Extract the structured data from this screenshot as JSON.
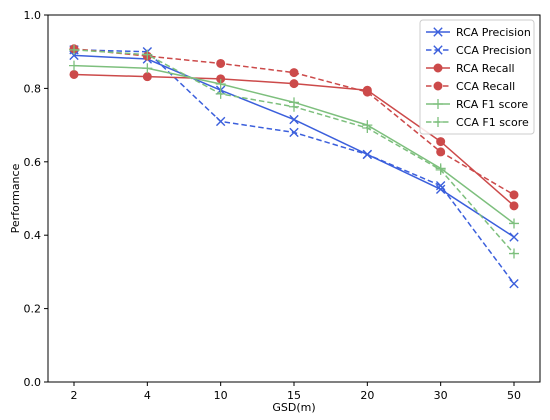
{
  "chart_data": {
    "type": "line",
    "xlabel": "GSD(m)",
    "ylabel": "Performance",
    "categories": [
      "2",
      "4",
      "10",
      "15",
      "20",
      "30",
      "50"
    ],
    "ylim": [
      0.0,
      1.0
    ],
    "yticks": [
      "0.0",
      "0.2",
      "0.4",
      "0.6",
      "0.8",
      "1.0"
    ],
    "grid": false,
    "legend_position": "top-right",
    "series": [
      {
        "name": "RCA Precision",
        "values": [
          0.89,
          0.88,
          0.795,
          0.715,
          0.62,
          0.525,
          0.395
        ],
        "color": "#3b5fdc",
        "dash": "solid",
        "marker": "x"
      },
      {
        "name": "CCA Precision",
        "values": [
          0.905,
          0.9,
          0.71,
          0.68,
          0.62,
          0.535,
          0.268
        ],
        "color": "#3b5fdc",
        "dash": "dashed",
        "marker": "x"
      },
      {
        "name": "RCA Recall",
        "values": [
          0.838,
          0.832,
          0.826,
          0.813,
          0.795,
          0.655,
          0.48
        ],
        "color": "#cc4a4a",
        "dash": "solid",
        "marker": "o"
      },
      {
        "name": "CCA Recall",
        "values": [
          0.908,
          0.888,
          0.868,
          0.843,
          0.79,
          0.627,
          0.51
        ],
        "color": "#cc4a4a",
        "dash": "dashed",
        "marker": "o"
      },
      {
        "name": "RCA F1 score",
        "values": [
          0.862,
          0.855,
          0.812,
          0.762,
          0.7,
          0.582,
          0.432
        ],
        "color": "#7dbf7d",
        "dash": "solid",
        "marker": "+"
      },
      {
        "name": "CCA F1 score",
        "values": [
          0.905,
          0.892,
          0.785,
          0.75,
          0.692,
          0.578,
          0.35
        ],
        "color": "#7dbf7d",
        "dash": "dashed",
        "marker": "+"
      }
    ]
  }
}
